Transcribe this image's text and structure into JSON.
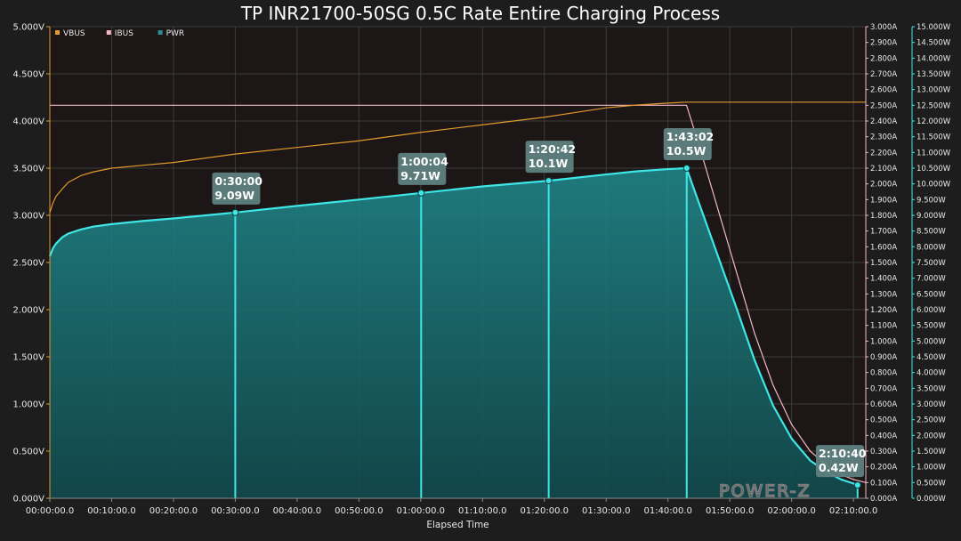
{
  "chart_data": {
    "type": "line",
    "title": "TP INR21700-50SG 0.5C Rate Entire Charging Process",
    "xlabel": "Elapsed Time",
    "x_ticks": [
      "00:00:00.0",
      "00:10:00.0",
      "00:20:00.0",
      "00:30:00.0",
      "00:40:00.0",
      "00:50:00.0",
      "01:00:00.0",
      "01:10:00.0",
      "01:20:00.0",
      "01:30:00.0",
      "01:40:00.0",
      "01:50:00.0",
      "02:00:00.0",
      "02:10:00.0"
    ],
    "x_unit": "minutes",
    "xlim": [
      0,
      132
    ],
    "y_left": {
      "label": "VBUS",
      "ticks": [
        "0.000V",
        "0.500V",
        "1.000V",
        "1.500V",
        "2.000V",
        "2.500V",
        "3.000V",
        "3.500V",
        "4.000V",
        "4.500V",
        "5.000V"
      ],
      "ylim": [
        0,
        5
      ]
    },
    "y_right_current": {
      "label": "IBUS",
      "ticks": [
        "0.000A",
        "0.100A",
        "0.200A",
        "0.300A",
        "0.400A",
        "0.500A",
        "0.600A",
        "0.700A",
        "0.800A",
        "0.900A",
        "1.000A",
        "1.100A",
        "1.200A",
        "1.300A",
        "1.400A",
        "1.500A",
        "1.600A",
        "1.700A",
        "1.800A",
        "1.900A",
        "2.000A",
        "2.100A",
        "2.200A",
        "2.300A",
        "2.400A",
        "2.500A",
        "2.600A",
        "2.700A",
        "2.800A",
        "2.900A",
        "3.000A"
      ],
      "ylim": [
        0,
        3
      ]
    },
    "y_right_power": {
      "label": "PWR",
      "ticks": [
        "0.000W",
        "0.500W",
        "1.000W",
        "1.500W",
        "2.000W",
        "2.500W",
        "3.000W",
        "3.500W",
        "4.000W",
        "4.500W",
        "5.000W",
        "5.500W",
        "6.000W",
        "6.500W",
        "7.000W",
        "7.500W",
        "8.000W",
        "8.500W",
        "9.000W",
        "9.500W",
        "10.000W",
        "10.500W",
        "11.000W",
        "11.500W",
        "12.000W",
        "12.500W",
        "13.000W",
        "13.500W",
        "14.000W",
        "14.500W",
        "15.000W"
      ],
      "ylim": [
        0,
        15
      ]
    },
    "legend": [
      {
        "name": "VBUS",
        "color": "#e09a2d"
      },
      {
        "name": "IBUS",
        "color": "#f2b8c6"
      },
      {
        "name": "PWR",
        "color": "#2a8f93"
      }
    ],
    "series": [
      {
        "name": "VBUS",
        "axis": "left",
        "color": "#e09a2d",
        "x": [
          0,
          0.5,
          1,
          2,
          3,
          5,
          7,
          10,
          15,
          20,
          30,
          40,
          50,
          60,
          70,
          80,
          85,
          90,
          95,
          100,
          103,
          110,
          120,
          132
        ],
        "y": [
          3.03,
          3.13,
          3.2,
          3.28,
          3.35,
          3.42,
          3.46,
          3.5,
          3.53,
          3.56,
          3.65,
          3.72,
          3.79,
          3.88,
          3.96,
          4.04,
          4.09,
          4.14,
          4.17,
          4.19,
          4.2,
          4.2,
          4.2,
          4.2
        ]
      },
      {
        "name": "IBUS",
        "axis": "current",
        "color": "#f2b8c6",
        "x": [
          0,
          10,
          30,
          60,
          90,
          102,
          103,
          105,
          108,
          111,
          114,
          117,
          120,
          123,
          126,
          128,
          130,
          132
        ],
        "y": [
          2.5,
          2.5,
          2.5,
          2.5,
          2.5,
          2.5,
          2.5,
          2.25,
          1.85,
          1.45,
          1.05,
          0.72,
          0.47,
          0.3,
          0.2,
          0.15,
          0.12,
          0.1
        ]
      },
      {
        "name": "PWR",
        "axis": "power",
        "color": "#2a8f93",
        "x": [
          0,
          0.5,
          1,
          2,
          3,
          5,
          7,
          10,
          15,
          20,
          30,
          40,
          50,
          60,
          70,
          80.7,
          90,
          95,
          100,
          103,
          105,
          108,
          111,
          114,
          117,
          120,
          123,
          126,
          128,
          130,
          130.67
        ],
        "y": [
          7.7,
          7.95,
          8.1,
          8.3,
          8.42,
          8.55,
          8.64,
          8.72,
          8.82,
          8.9,
          9.09,
          9.3,
          9.5,
          9.71,
          9.92,
          10.1,
          10.3,
          10.4,
          10.47,
          10.5,
          9.4,
          7.75,
          6.1,
          4.4,
          2.95,
          1.9,
          1.2,
          0.8,
          0.6,
          0.47,
          0.42
        ]
      }
    ],
    "annotations": [
      {
        "x": 30,
        "time": "0:30:00",
        "value": 9.09,
        "value_label": "9.09W"
      },
      {
        "x": 60.07,
        "time": "1:00:04",
        "value": 9.71,
        "value_label": "9.71W"
      },
      {
        "x": 80.7,
        "time": "1:20:42",
        "value": 10.1,
        "value_label": "10.1W"
      },
      {
        "x": 103.03,
        "time": "1:43:02",
        "value": 10.5,
        "value_label": "10.5W"
      },
      {
        "x": 130.67,
        "time": "2:10:40",
        "value": 0.42,
        "value_label": "0.42W"
      }
    ],
    "watermark": "POWER-Z"
  }
}
